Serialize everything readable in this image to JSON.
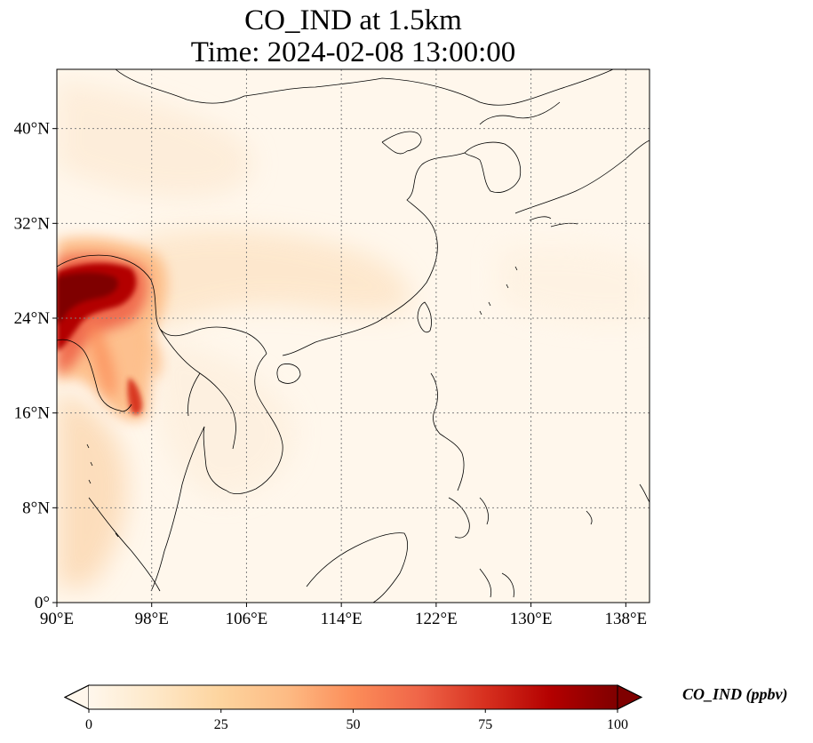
{
  "title": {
    "line1": "CO_IND at 1.5km",
    "line2": "Time: 2024-02-08 13:00:00"
  },
  "map": {
    "projection": "PlateCarree",
    "extent": {
      "lon_min": 90,
      "lon_max": 140,
      "lat_min": 0,
      "lat_max": 45
    },
    "gridlines": "dotted",
    "lon_ticks": [
      {
        "value": 90,
        "label": "90°E"
      },
      {
        "value": 98,
        "label": "98°E"
      },
      {
        "value": 106,
        "label": "106°E"
      },
      {
        "value": 114,
        "label": "114°E"
      },
      {
        "value": 122,
        "label": "122°E"
      },
      {
        "value": 130,
        "label": "130°E"
      },
      {
        "value": 138,
        "label": "138°E"
      }
    ],
    "lat_ticks": [
      {
        "value": 0,
        "label": "0°"
      },
      {
        "value": 8,
        "label": "8°N"
      },
      {
        "value": 16,
        "label": "16°N"
      },
      {
        "value": 24,
        "label": "24°N"
      },
      {
        "value": 32,
        "label": "32°N"
      },
      {
        "value": 40,
        "label": "40°N"
      }
    ],
    "field_hotspots": [
      {
        "name": "myanmar-bangladesh-plume",
        "lon": 92,
        "lat": 26.5,
        "value": 100
      },
      {
        "name": "myanmar-south-plume",
        "lon": 96,
        "lat": 22,
        "value": 55
      },
      {
        "name": "andaman-coast-plume",
        "lon": 96.5,
        "lat": 17.5,
        "value": 80
      },
      {
        "name": "china-interior-haze",
        "lon": 108,
        "lat": 28,
        "value": 12
      }
    ]
  },
  "colorbar": {
    "label": "CO_IND (ppbv)",
    "cmap": "OrRd",
    "vmin": 0,
    "vmax": 100,
    "extend": "both",
    "ticks": [
      {
        "value": 0,
        "label": "0"
      },
      {
        "value": 25,
        "label": "25"
      },
      {
        "value": 50,
        "label": "50"
      },
      {
        "value": 75,
        "label": "75"
      },
      {
        "value": 100,
        "label": "100"
      }
    ],
    "colors": [
      "#fff7ec",
      "#fee8c8",
      "#fdd49e",
      "#fdbb84",
      "#fc8d59",
      "#ef6548",
      "#d7301f",
      "#b30000",
      "#7f0000"
    ]
  }
}
